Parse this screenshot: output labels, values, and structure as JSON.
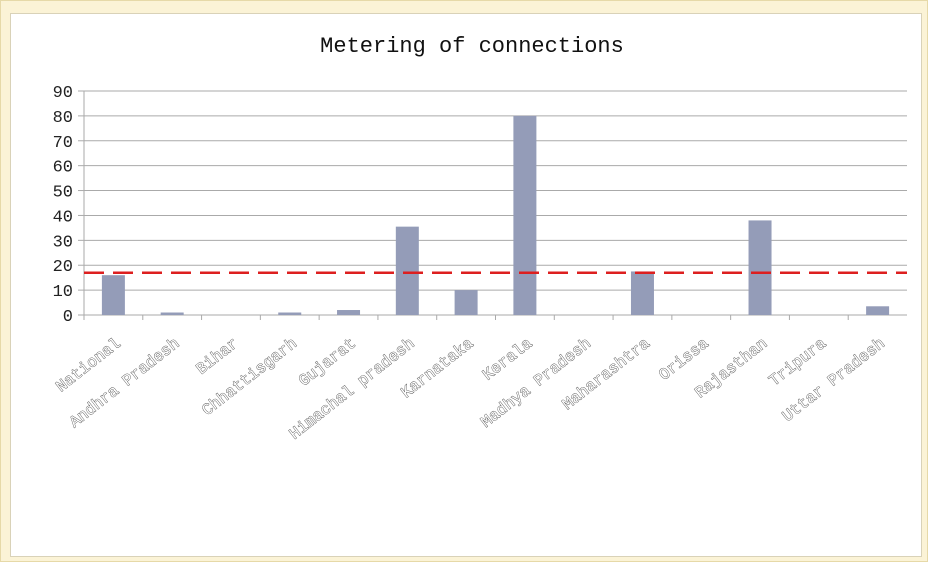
{
  "chart_data": {
    "type": "bar",
    "title": "Metering of connections",
    "categories": [
      "National",
      "Andhra Pradesh",
      "Bihar",
      "Chhattisgarh",
      "Gujarat",
      "Himachal pradesh",
      "Karnataka",
      "Kerala",
      "Madhya Pradesh",
      "Maharashtra",
      "Orissa",
      "Rajasthan",
      "Tripura",
      "Uttar Pradesh"
    ],
    "series": [
      {
        "values": [
          16,
          1,
          0,
          1,
          2,
          35.5,
          10,
          80,
          0,
          17.5,
          0,
          38,
          0,
          3.5
        ]
      }
    ],
    "reference_line": {
      "value": 17,
      "style": "dashed"
    },
    "ylim": [
      0,
      90
    ],
    "yticks": [
      0,
      10,
      20,
      30,
      40,
      50,
      60,
      70,
      80,
      90
    ],
    "grid": true,
    "legend": "none"
  },
  "colors": {
    "bar": "#949cb8",
    "grid": "#aaaaaa",
    "reference_line": "#dd1f1f",
    "background": "#fbf3d6"
  }
}
